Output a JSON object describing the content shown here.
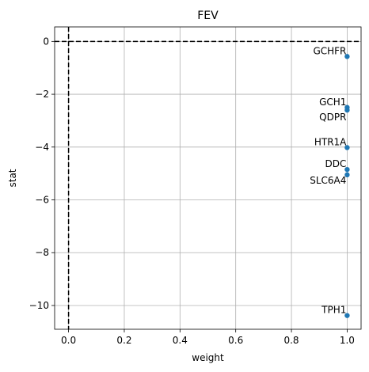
{
  "chart_data": {
    "type": "scatter",
    "title": "FEV",
    "xlabel": "weight",
    "ylabel": "stat",
    "xlim": [
      -0.05,
      1.05
    ],
    "ylim": [
      -10.9,
      0.55
    ],
    "xticks": [
      0.0,
      0.2,
      0.4,
      0.6,
      0.8,
      1.0
    ],
    "xtick_labels": [
      "0.0",
      "0.2",
      "0.4",
      "0.6",
      "0.8",
      "1.0"
    ],
    "yticks": [
      0,
      -2,
      -4,
      -6,
      -8,
      -10
    ],
    "ytick_labels": [
      "0",
      "−2",
      "−4",
      "−6",
      "−8",
      "−10"
    ],
    "grid": true,
    "reference_lines": {
      "x": 0,
      "y": 0,
      "style": "dashed",
      "color": "#000000"
    },
    "marker_color": "#1f77b4",
    "points": [
      {
        "label": "GCHFR",
        "x": 1.0,
        "y": -0.57
      },
      {
        "label": "GCH1",
        "x": 1.0,
        "y": -2.5
      },
      {
        "label": "QDPR",
        "x": 1.0,
        "y": -2.6
      },
      {
        "label": "HTR1A",
        "x": 1.0,
        "y": -4.02
      },
      {
        "label": "DDC",
        "x": 1.0,
        "y": -4.85
      },
      {
        "label": "SLC6A4",
        "x": 1.0,
        "y": -5.05
      },
      {
        "label": "TPH1",
        "x": 1.0,
        "y": -10.38
      }
    ]
  }
}
